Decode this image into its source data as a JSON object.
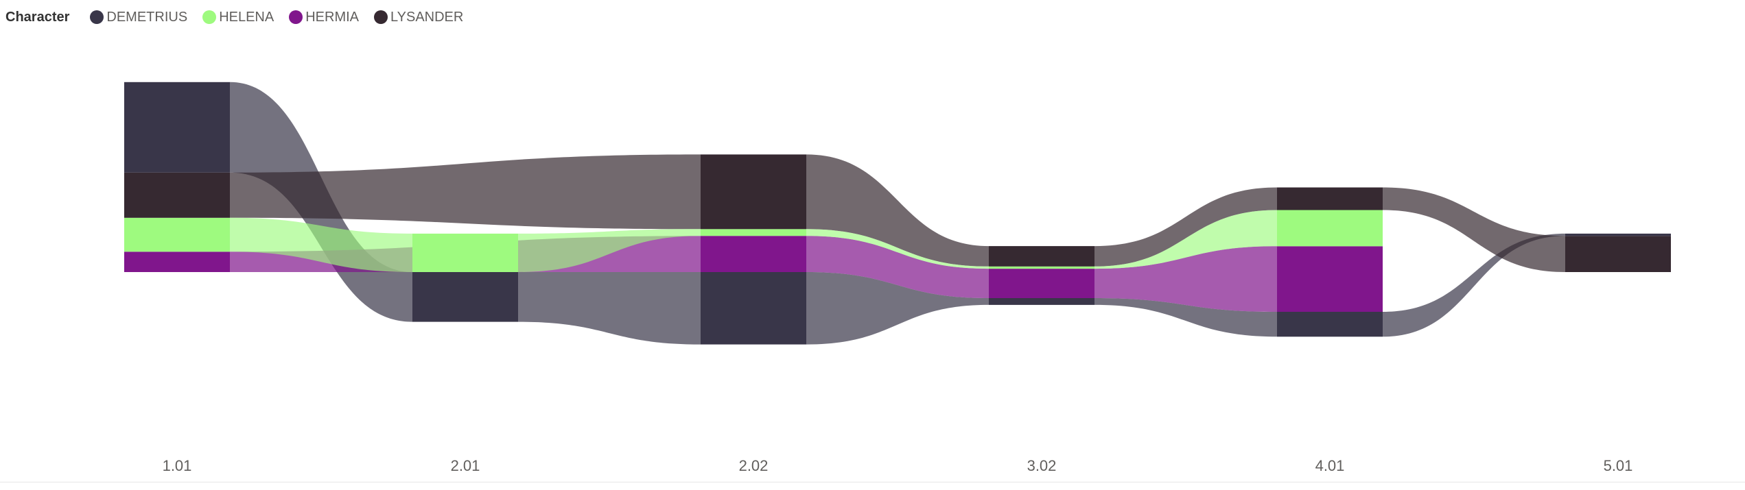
{
  "legend": {
    "title": "Character",
    "items": [
      {
        "key": "DEMETRIUS",
        "label": "DEMETRIUS",
        "color": "#393649"
      },
      {
        "key": "HELENA",
        "label": "HELENA",
        "color": "#9efa7f"
      },
      {
        "key": "HERMIA",
        "label": "HERMIA",
        "color": "#80168c"
      },
      {
        "key": "LYSANDER",
        "label": "LYSANDER",
        "color": "#362931"
      }
    ]
  },
  "chart_data": {
    "type": "ribbon",
    "categories": [
      "1.01",
      "2.01",
      "2.02",
      "3.02",
      "4.01",
      "5.01"
    ],
    "series_order": [
      "HERMIA",
      "HELENA",
      "LYSANDER",
      "DEMETRIUS"
    ],
    "series": [
      {
        "name": "DEMETRIUS",
        "values": [
          40,
          22,
          32,
          3,
          11,
          1
        ]
      },
      {
        "name": "HELENA",
        "values": [
          15,
          17,
          3,
          1,
          16,
          0
        ]
      },
      {
        "name": "HERMIA",
        "values": [
          9,
          0,
          16,
          13,
          29,
          0
        ]
      },
      {
        "name": "LYSANDER",
        "values": [
          20,
          0,
          33,
          9,
          10,
          16
        ]
      }
    ],
    "grid": false,
    "legend_position": "top-left"
  }
}
